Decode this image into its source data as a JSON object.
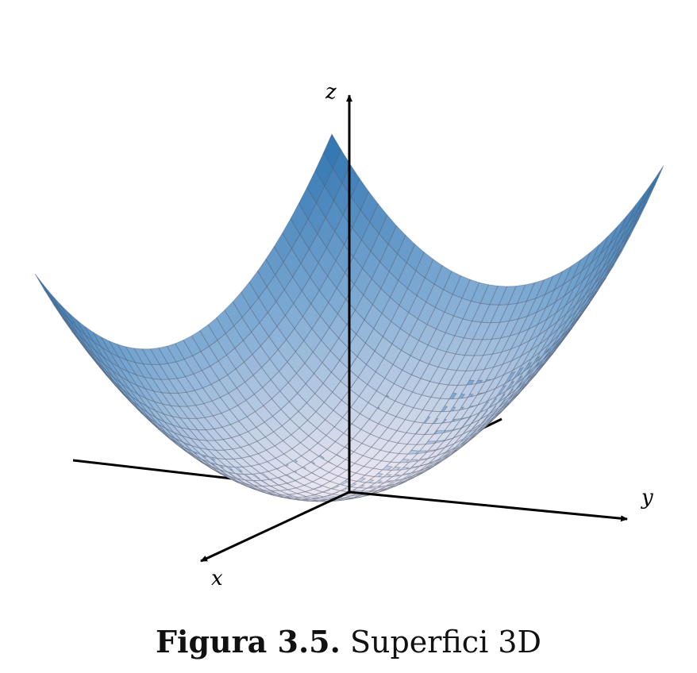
{
  "figure": {
    "axes": {
      "x": "x",
      "y": "y",
      "z": "z"
    },
    "surface": {
      "function": "z = x^2 + y^2",
      "colors": {
        "low": "#ebe7f1",
        "mid": "#7aa8d2",
        "high": "#2d72b0",
        "edge": "#23507a",
        "grid": "#4a4f63"
      }
    }
  },
  "caption": {
    "label": "Figura 3.5.",
    "text": "Superfici 3D"
  }
}
